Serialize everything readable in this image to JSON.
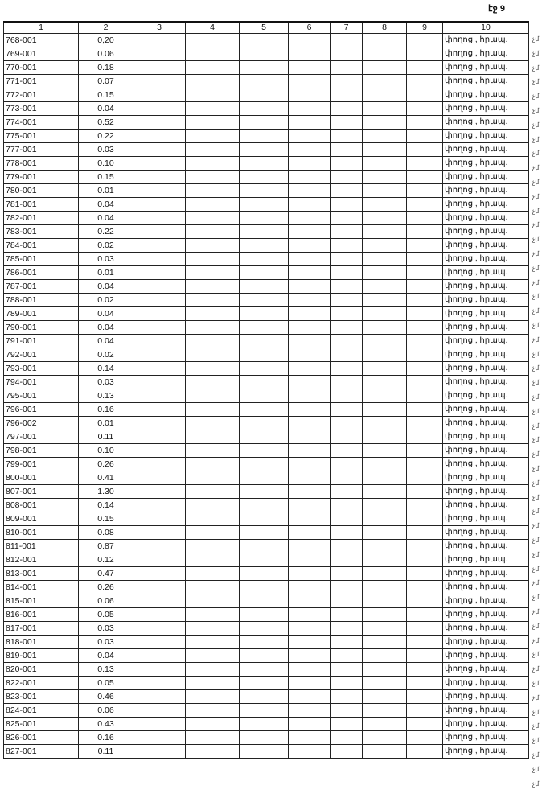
{
  "page_label": "էջ 9",
  "headers": [
    "1",
    "2",
    "3",
    "4",
    "5",
    "6",
    "7",
    "8",
    "9",
    "10"
  ],
  "rows": [
    [
      "768-001",
      "0,20"
    ],
    [
      "769-001",
      "0.06"
    ],
    [
      "770-001",
      "0.18"
    ],
    [
      "771-001",
      "0.07"
    ],
    [
      "772-001",
      "0.15"
    ],
    [
      "773-001",
      "0.04"
    ],
    [
      "774-001",
      "0.52"
    ],
    [
      "775-001",
      "0.22"
    ],
    [
      "777-001",
      "0.03"
    ],
    [
      "778-001",
      "0.10"
    ],
    [
      "779-001",
      "0.15"
    ],
    [
      "780-001",
      "0.01"
    ],
    [
      "781-001",
      "0.04"
    ],
    [
      "782-001",
      "0.04"
    ],
    [
      "783-001",
      "0.22"
    ],
    [
      "784-001",
      "0.02"
    ],
    [
      "785-001",
      "0.03"
    ],
    [
      "786-001",
      "0.01"
    ],
    [
      "787-001",
      "0.04"
    ],
    [
      "788-001",
      "0.02"
    ],
    [
      "789-001",
      "0.04"
    ],
    [
      "790-001",
      "0.04"
    ],
    [
      "791-001",
      "0.04"
    ],
    [
      "792-001",
      "0.02"
    ],
    [
      "793-001",
      "0.14"
    ],
    [
      "794-001",
      "0.03"
    ],
    [
      "795-001",
      "0.13"
    ],
    [
      "796-001",
      "0.16"
    ],
    [
      "796-002",
      "0.01"
    ],
    [
      "797-001",
      "0.11"
    ],
    [
      "798-001",
      "0.10"
    ],
    [
      "799-001",
      "0.26"
    ],
    [
      "800-001",
      "0.41"
    ],
    [
      "807-001",
      "1.30"
    ],
    [
      "808-001",
      "0.14"
    ],
    [
      "809-001",
      "0.15"
    ],
    [
      "810-001",
      "0.08"
    ],
    [
      "811-001",
      "0.87"
    ],
    [
      "812-001",
      "0.12"
    ],
    [
      "813-001",
      "0.47"
    ],
    [
      "814-001",
      "0.26"
    ],
    [
      "815-001",
      "0.06"
    ],
    [
      "816-001",
      "0.05"
    ],
    [
      "817-001",
      "0.03"
    ],
    [
      "818-001",
      "0.03"
    ],
    [
      "819-001",
      "0.04"
    ],
    [
      "820-001",
      "0.13"
    ],
    [
      "822-001",
      "0.05"
    ],
    [
      "823-001",
      "0.46"
    ],
    [
      "824-001",
      "0.06"
    ],
    [
      "825-001",
      "0.43"
    ],
    [
      "826-001",
      "0.16"
    ],
    [
      "827-001",
      "0.11"
    ]
  ],
  "col10_value": "փողոց., հրապ.",
  "side_mark": "չմ"
}
